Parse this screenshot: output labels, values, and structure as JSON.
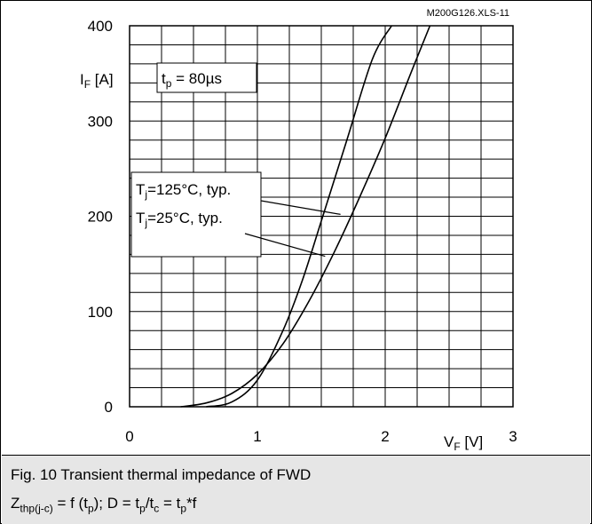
{
  "chart_data": {
    "type": "line",
    "code_label": "M200G126.XLS-11",
    "xlabel": {
      "symbol": "V",
      "sub": "F",
      "unit": "[V]"
    },
    "ylabel": {
      "symbol": "I",
      "sub": "F",
      "unit": "[A]"
    },
    "xlim": [
      0,
      3
    ],
    "ylim": [
      0,
      400
    ],
    "x_ticks": [
      0,
      1,
      2,
      3
    ],
    "y_ticks": [
      0,
      100,
      200,
      300,
      400
    ],
    "grid": true,
    "condition": {
      "symbol": "t",
      "sub": "p",
      "text": " = 80µs"
    },
    "series": [
      {
        "name": "Tj=125°C, typ.",
        "label": {
          "symbol": "T",
          "sub": "j",
          "text": "=125°C, typ."
        },
        "x": [
          0.4,
          0.6,
          0.8,
          1.0,
          1.2,
          1.4,
          1.6,
          1.8,
          2.0,
          2.2,
          2.35
        ],
        "y": [
          0,
          4,
          14,
          34,
          66,
          110,
          162,
          220,
          282,
          350,
          400
        ]
      },
      {
        "name": "Tj=25°C, typ.",
        "label": {
          "symbol": "T",
          "sub": "j",
          "text": "=25°C, typ."
        },
        "x": [
          0.6,
          0.8,
          1.0,
          1.2,
          1.35,
          1.5,
          1.7,
          1.9,
          2.05
        ],
        "y": [
          0,
          5,
          28,
          80,
          132,
          195,
          280,
          365,
          400
        ]
      }
    ]
  },
  "caption": {
    "line1": "Fig. 10 Transient thermal impedance of FWD",
    "z_sym": "Z",
    "z_sub": "thp(j-c)",
    "f_open": " = f (t",
    "p1": "p",
    "f_close": "); D = t",
    "p2": "p",
    "slash_t": "/t",
    "c": "c",
    "eq_t": " = t",
    "p3": "p",
    "star_f": "*f"
  }
}
